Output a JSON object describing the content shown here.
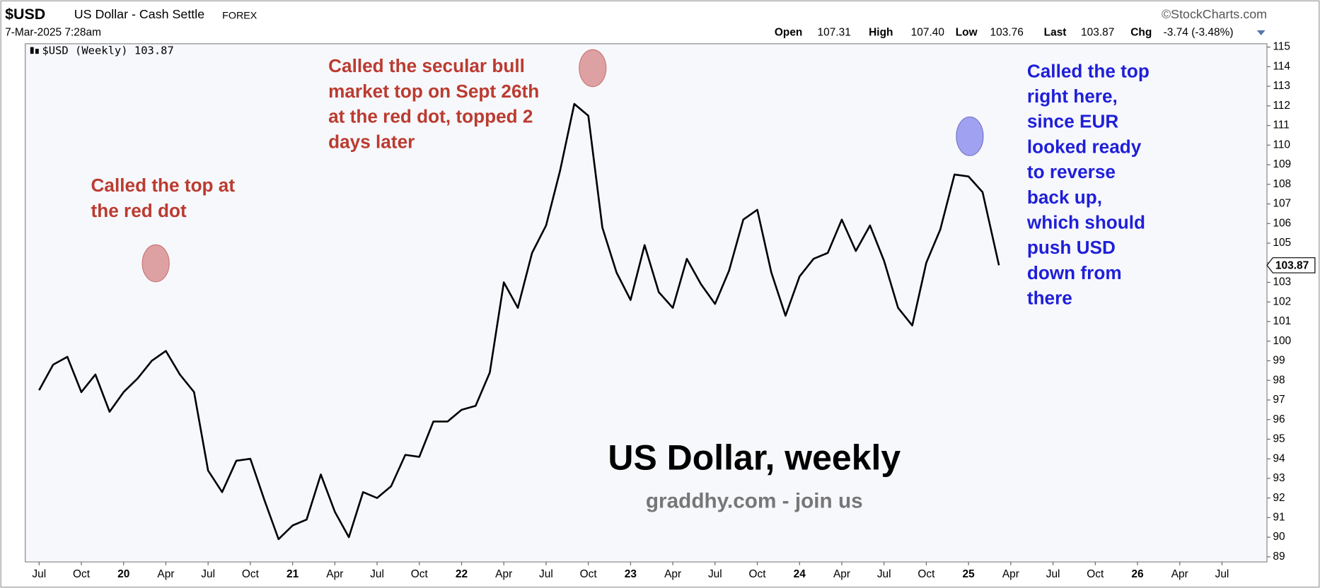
{
  "header": {
    "symbol": "$USD",
    "name": "US Dollar - Cash Settle",
    "exchange": "FOREX",
    "date": "7-Mar-2025 7:28am",
    "source": "©StockCharts.com",
    "open_label": "Open",
    "open": "107.31",
    "high_label": "High",
    "high": "107.40",
    "low_label": "Low",
    "low": "103.76",
    "last_label": "Last",
    "last": "103.87",
    "chg_label": "Chg",
    "chg": "-3.74 (-3.48%)"
  },
  "chart_data": {
    "type": "line",
    "legend": "$USD (Weekly)",
    "last": 103.87,
    "title": "US Dollar, weekly",
    "subtitle": "graddhy.com - join us",
    "annotations": [
      {
        "color": "#bb3b30",
        "lines": [
          "Called the top at",
          "the red dot"
        ]
      },
      {
        "color": "#bb3b30",
        "lines": [
          "Called the secular bull",
          "market top on Sept 26th",
          "at the red dot, topped 2",
          "days later"
        ]
      },
      {
        "color": "#1f1fd8",
        "lines": [
          "Called the top",
          "right here,",
          "since EUR",
          "looked ready",
          "to reverse",
          "back up,",
          "which should",
          "push USD",
          "down from",
          "there"
        ]
      }
    ],
    "x": [
      2019.5,
      2019.583,
      2019.667,
      2019.75,
      2019.833,
      2019.917,
      2020,
      2020.083,
      2020.167,
      2020.25,
      2020.333,
      2020.417,
      2020.5,
      2020.583,
      2020.667,
      2020.75,
      2020.833,
      2020.917,
      2021,
      2021.083,
      2021.167,
      2021.25,
      2021.333,
      2021.417,
      2021.5,
      2021.583,
      2021.667,
      2021.75,
      2021.833,
      2021.917,
      2022,
      2022.083,
      2022.167,
      2022.25,
      2022.333,
      2022.417,
      2022.5,
      2022.583,
      2022.667,
      2022.75,
      2022.833,
      2022.917,
      2023,
      2023.083,
      2023.167,
      2023.25,
      2023.333,
      2023.417,
      2023.5,
      2023.583,
      2023.667,
      2023.75,
      2023.833,
      2023.917,
      2024,
      2024.083,
      2024.167,
      2024.25,
      2024.333,
      2024.417,
      2024.5,
      2024.583,
      2024.667,
      2024.75,
      2024.833,
      2024.917,
      2025,
      2025.083,
      2025.18
    ],
    "series": [
      {
        "name": "$USD",
        "color": "#000000",
        "values": [
          97.5,
          98.8,
          99.2,
          97.4,
          98.3,
          96.4,
          97.4,
          98.1,
          99.0,
          99.5,
          98.3,
          97.4,
          93.4,
          92.3,
          93.9,
          94.0,
          91.9,
          89.9,
          90.6,
          90.9,
          93.2,
          91.3,
          90.0,
          92.3,
          92.0,
          92.6,
          94.2,
          94.1,
          95.9,
          95.9,
          96.5,
          96.7,
          98.4,
          103.0,
          101.7,
          104.5,
          105.9,
          108.7,
          112.1,
          111.5,
          105.8,
          103.5,
          102.1,
          104.9,
          102.5,
          101.7,
          104.2,
          102.9,
          101.9,
          103.6,
          106.2,
          106.7,
          103.5,
          101.3,
          103.3,
          104.2,
          104.5,
          106.2,
          104.6,
          105.9,
          104.1,
          101.7,
          100.8,
          104.0,
          105.7,
          108.5,
          108.4,
          107.6,
          103.87
        ]
      }
    ],
    "xlim": [
      2019.418,
      2026.766
    ],
    "ylim": [
      88.74,
      115.17
    ],
    "xticks": [
      {
        "value": 2019.5,
        "label": "Jul"
      },
      {
        "value": 2019.75,
        "label": "Oct"
      },
      {
        "value": 2020,
        "label": "20"
      },
      {
        "value": 2020.25,
        "label": "Apr"
      },
      {
        "value": 2020.5,
        "label": "Jul"
      },
      {
        "value": 2020.75,
        "label": "Oct"
      },
      {
        "value": 2021,
        "label": "21"
      },
      {
        "value": 2021.25,
        "label": "Apr"
      },
      {
        "value": 2021.5,
        "label": "Jul"
      },
      {
        "value": 2021.75,
        "label": "Oct"
      },
      {
        "value": 2022,
        "label": "22"
      },
      {
        "value": 2022.25,
        "label": "Apr"
      },
      {
        "value": 2022.5,
        "label": "Jul"
      },
      {
        "value": 2022.75,
        "label": "Oct"
      },
      {
        "value": 2023,
        "label": "23"
      },
      {
        "value": 2023.25,
        "label": "Apr"
      },
      {
        "value": 2023.5,
        "label": "Jul"
      },
      {
        "value": 2023.75,
        "label": "Oct"
      },
      {
        "value": 2024,
        "label": "24"
      },
      {
        "value": 2024.25,
        "label": "Apr"
      },
      {
        "value": 2024.5,
        "label": "Jul"
      },
      {
        "value": 2024.75,
        "label": "Oct"
      },
      {
        "value": 2025,
        "label": "25"
      },
      {
        "value": 2025.25,
        "label": "Apr"
      },
      {
        "value": 2025.5,
        "label": "Jul"
      },
      {
        "value": 2025.75,
        "label": "Oct"
      },
      {
        "value": 2026,
        "label": "26"
      },
      {
        "value": 2026.25,
        "label": "Apr"
      },
      {
        "value": 2026.5,
        "label": "Jul"
      }
    ],
    "yticks": [
      89,
      90,
      91,
      92,
      93,
      94,
      95,
      96,
      97,
      98,
      99,
      100,
      101,
      102,
      103,
      104,
      105,
      106,
      107,
      108,
      109,
      110,
      111,
      112,
      113,
      114,
      115
    ],
    "grid": false
  }
}
